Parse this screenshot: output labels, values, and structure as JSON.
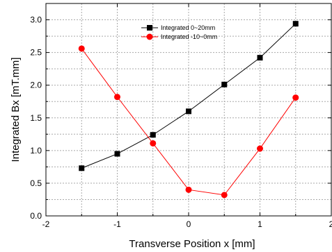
{
  "chart_data": {
    "type": "line",
    "title": "",
    "xlabel": "Transverse Position x [mm]",
    "ylabel": "Integrated Bx [mT.mm]",
    "xlim": [
      -2,
      2
    ],
    "ylim": [
      0.0,
      3.25
    ],
    "x_ticks": [
      -2,
      -1,
      0,
      1,
      2
    ],
    "x_tick_labels": [
      "-2",
      "-1",
      "0",
      "1",
      "2"
    ],
    "y_ticks": [
      0.0,
      0.5,
      1.0,
      1.5,
      2.0,
      2.5,
      3.0
    ],
    "y_tick_labels": [
      "0.0",
      "0.5",
      "1.0",
      "1.5",
      "2.0",
      "2.5",
      "3.0"
    ],
    "grid": true,
    "legend_position": "top-center",
    "x": [
      -1.5,
      -1.0,
      -0.5,
      0.0,
      0.5,
      1.0,
      1.5
    ],
    "series": [
      {
        "name": "Integrated 0~20mm",
        "color": "#000000",
        "marker": "square",
        "values": [
          0.73,
          0.95,
          1.24,
          1.6,
          2.01,
          2.42,
          2.94
        ]
      },
      {
        "name": "Integrated -10~0mm",
        "color": "#ff0000",
        "marker": "circle",
        "values": [
          2.56,
          1.82,
          1.11,
          0.4,
          0.32,
          1.03,
          1.81
        ]
      }
    ]
  }
}
